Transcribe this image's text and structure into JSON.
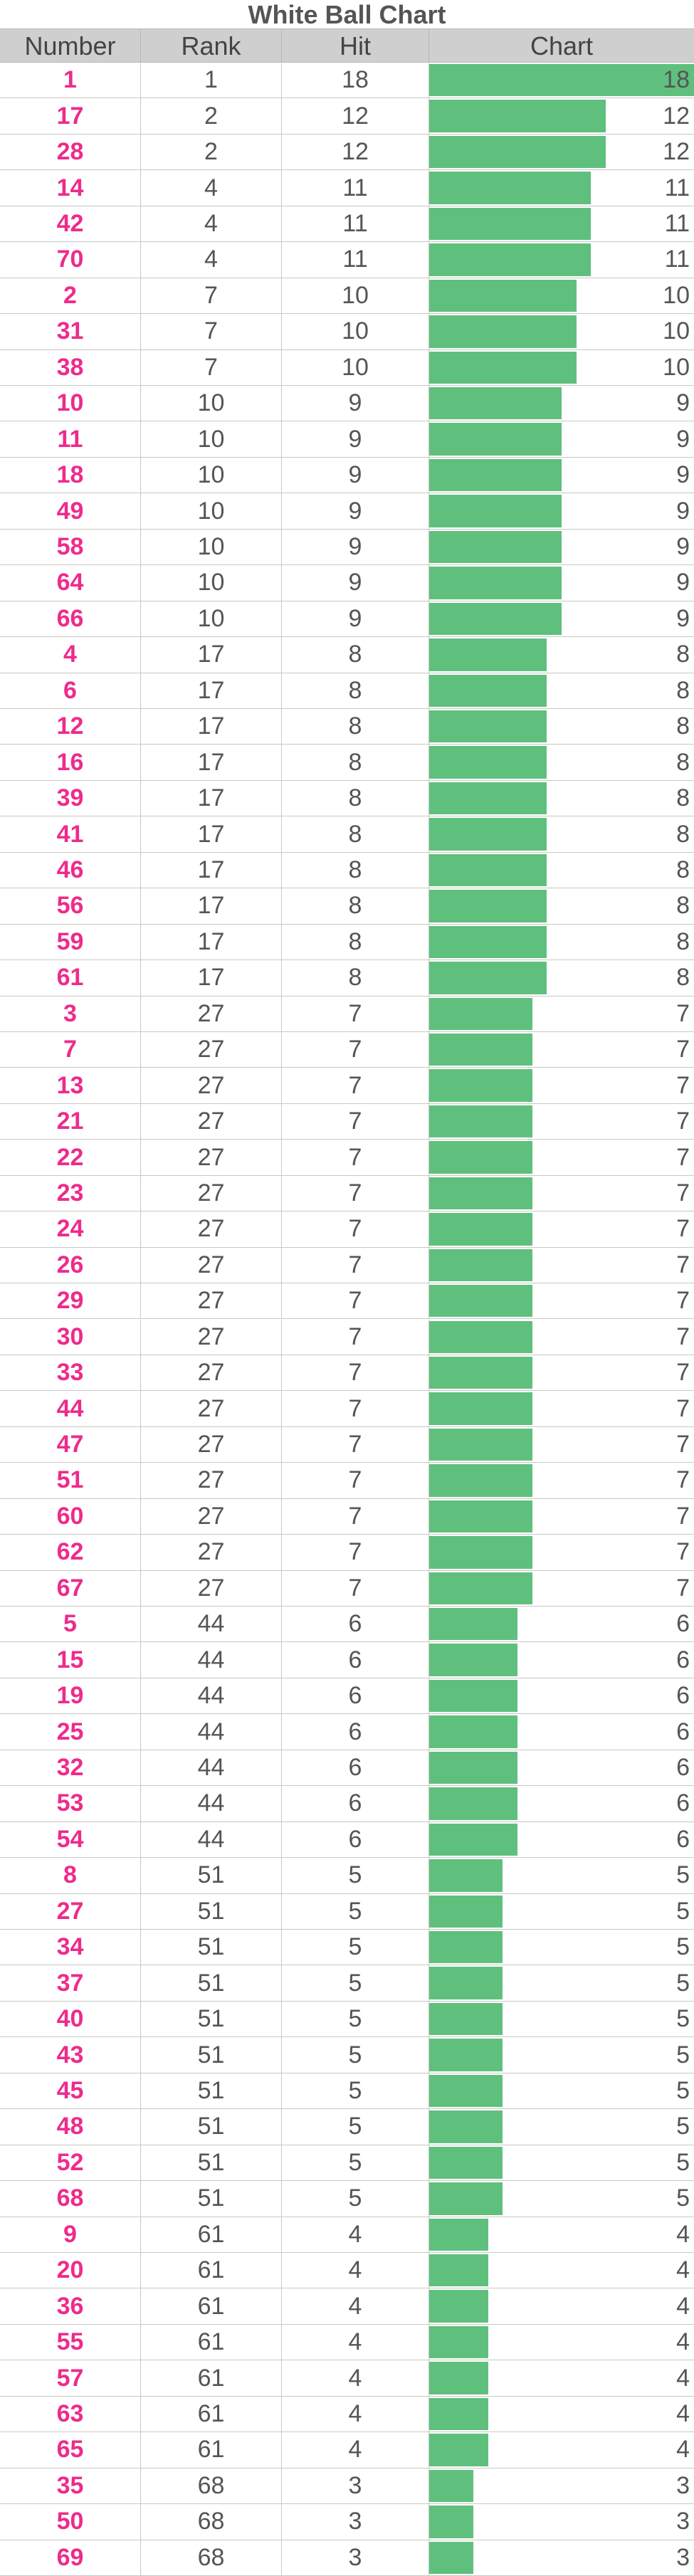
{
  "title": "White Ball Chart",
  "columns": [
    "Number",
    "Rank",
    "Hit",
    "Chart"
  ],
  "colors": {
    "number_text": "#ee2b8c",
    "bar": "#5fc07e",
    "header_bg": "#cfcfcf",
    "text": "#555555"
  },
  "chart_data": {
    "type": "bar",
    "orientation": "horizontal",
    "title": "White Ball Chart",
    "xlim": [
      0,
      18
    ],
    "categories": [
      "1",
      "17",
      "28",
      "14",
      "42",
      "70",
      "2",
      "31",
      "38",
      "10",
      "11",
      "18",
      "49",
      "58",
      "64",
      "66",
      "4",
      "6",
      "12",
      "16",
      "39",
      "41",
      "46",
      "56",
      "59",
      "61",
      "3",
      "7",
      "13",
      "21",
      "22",
      "23",
      "24",
      "26",
      "29",
      "30",
      "33",
      "44",
      "47",
      "51",
      "60",
      "62",
      "67",
      "5",
      "15",
      "19",
      "25",
      "32",
      "53",
      "54",
      "8",
      "27",
      "34",
      "37",
      "40",
      "43",
      "45",
      "48",
      "52",
      "68",
      "9",
      "20",
      "36",
      "55",
      "57",
      "63",
      "65",
      "35",
      "50",
      "69"
    ],
    "ranks": [
      1,
      2,
      2,
      4,
      4,
      4,
      7,
      7,
      7,
      10,
      10,
      10,
      10,
      10,
      10,
      10,
      17,
      17,
      17,
      17,
      17,
      17,
      17,
      17,
      17,
      17,
      27,
      27,
      27,
      27,
      27,
      27,
      27,
      27,
      27,
      27,
      27,
      27,
      27,
      27,
      27,
      27,
      27,
      44,
      44,
      44,
      44,
      44,
      44,
      44,
      51,
      51,
      51,
      51,
      51,
      51,
      51,
      51,
      51,
      51,
      61,
      61,
      61,
      61,
      61,
      61,
      61,
      68,
      68,
      68
    ],
    "values": [
      18,
      12,
      12,
      11,
      11,
      11,
      10,
      10,
      10,
      9,
      9,
      9,
      9,
      9,
      9,
      9,
      8,
      8,
      8,
      8,
      8,
      8,
      8,
      8,
      8,
      8,
      7,
      7,
      7,
      7,
      7,
      7,
      7,
      7,
      7,
      7,
      7,
      7,
      7,
      7,
      7,
      7,
      7,
      6,
      6,
      6,
      6,
      6,
      6,
      6,
      5,
      5,
      5,
      5,
      5,
      5,
      5,
      5,
      5,
      5,
      4,
      4,
      4,
      4,
      4,
      4,
      4,
      3,
      3,
      3
    ]
  }
}
